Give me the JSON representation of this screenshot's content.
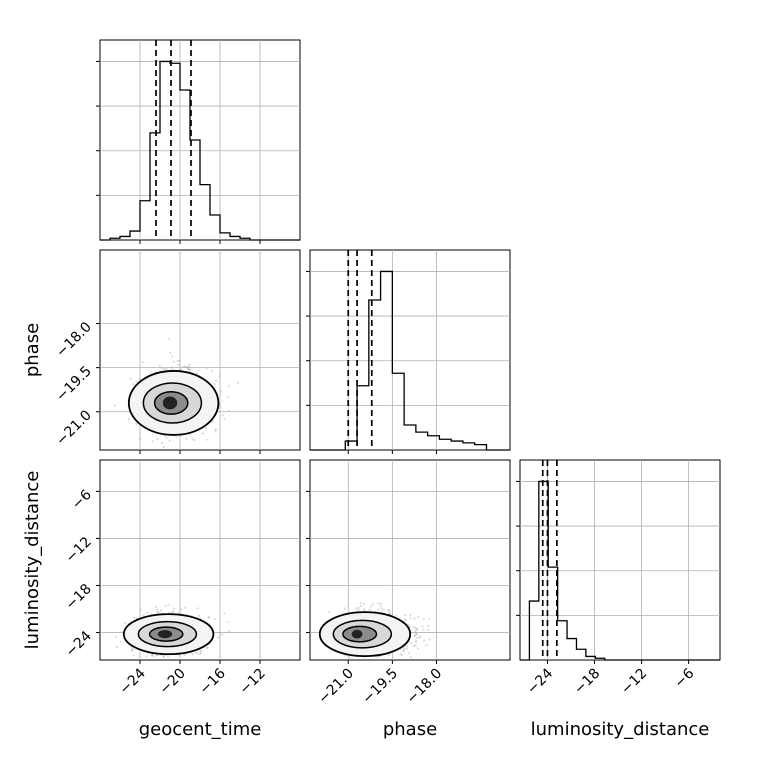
{
  "chart_data": {
    "type": "corner",
    "parameters": [
      "geocent_time",
      "phase",
      "luminosity_distance"
    ],
    "axis_labels": {
      "geocent_time": "geocent_time",
      "phase": "phase",
      "luminosity_distance": "luminosity_distance"
    },
    "ranges": {
      "geocent_time": [
        -28.0,
        -8.0
      ],
      "phase": [
        -22.3,
        -15.5
      ],
      "luminosity_distance": [
        -27.5,
        -2.0
      ]
    },
    "ticks": {
      "geocent_time": [
        -24,
        -20,
        -16,
        -12
      ],
      "phase": [
        -21.0,
        -19.5,
        -18.0
      ],
      "luminosity_distance": [
        -24,
        -18,
        -12,
        -6
      ]
    },
    "tick_labels": {
      "geocent_time": [
        "−24",
        "−20",
        "−16",
        "−12"
      ],
      "phase": [
        "−21.0",
        "−19.5",
        "−18.0"
      ],
      "luminosity_distance": [
        "−24",
        "−18",
        "−12",
        "−6"
      ]
    },
    "quantiles": {
      "geocent_time": [
        -22.4,
        -20.9,
        -18.9
      ],
      "phase": [
        -21.0,
        -20.7,
        -20.2
      ],
      "luminosity_distance": [
        -24.6,
        -24.0,
        -22.8
      ]
    },
    "histograms": {
      "geocent_time": {
        "edges": [
          -28.0,
          -27.0,
          -26.0,
          -25.0,
          -24.0,
          -23.0,
          -22.0,
          -21.0,
          -20.0,
          -19.0,
          -18.0,
          -17.0,
          -16.0,
          -15.0,
          -14.0,
          -13.0,
          -12.0,
          -11.0,
          -10.0,
          -9.0,
          -8.0
        ],
        "values": [
          0.0,
          0.01,
          0.02,
          0.05,
          0.22,
          0.6,
          1.0,
          0.99,
          0.84,
          0.56,
          0.31,
          0.14,
          0.04,
          0.02,
          0.01,
          0.0,
          0.0,
          0.0,
          0.0,
          0.0
        ]
      },
      "phase": {
        "edges": [
          -22.3,
          -21.9,
          -21.5,
          -21.1,
          -20.7,
          -20.3,
          -19.9,
          -19.5,
          -19.1,
          -18.7,
          -18.3,
          -17.9,
          -17.5,
          -17.1,
          -16.7,
          -16.3,
          -15.9,
          -15.5
        ],
        "values": [
          0.0,
          0.0,
          0.0,
          0.05,
          0.36,
          0.84,
          1.0,
          0.43,
          0.14,
          0.1,
          0.08,
          0.06,
          0.05,
          0.04,
          0.03,
          0.0,
          0.0
        ]
      },
      "luminosity_distance": {
        "edges": [
          -27.5,
          -26.3,
          -25.1,
          -23.9,
          -22.7,
          -21.5,
          -20.3,
          -19.1,
          -17.9,
          -16.7,
          -15.5,
          -14.3,
          -13.1,
          -11.9,
          -10.7,
          -9.5,
          -8.3,
          -7.1,
          -5.9,
          -4.7,
          -3.5,
          -2.0
        ],
        "values": [
          0.0,
          0.33,
          1.0,
          0.52,
          0.22,
          0.12,
          0.06,
          0.02,
          0.01,
          0.0,
          0.0,
          0.0,
          0.0,
          0.0,
          0.0,
          0.0,
          0.0,
          0.0,
          0.0,
          0.0,
          0.0
        ]
      }
    },
    "pair_centers": {
      "phase_vs_geocent_time": [
        -21.0,
        -20.7
      ],
      "luminosity_distance_vs_geocent_time": [
        -21.5,
        -24.2
      ],
      "luminosity_distance_vs_phase": [
        -20.7,
        -24.2
      ]
    },
    "contour_levels": [
      "1-sigma",
      "1.5-sigma",
      "2-sigma"
    ],
    "grid": true
  }
}
